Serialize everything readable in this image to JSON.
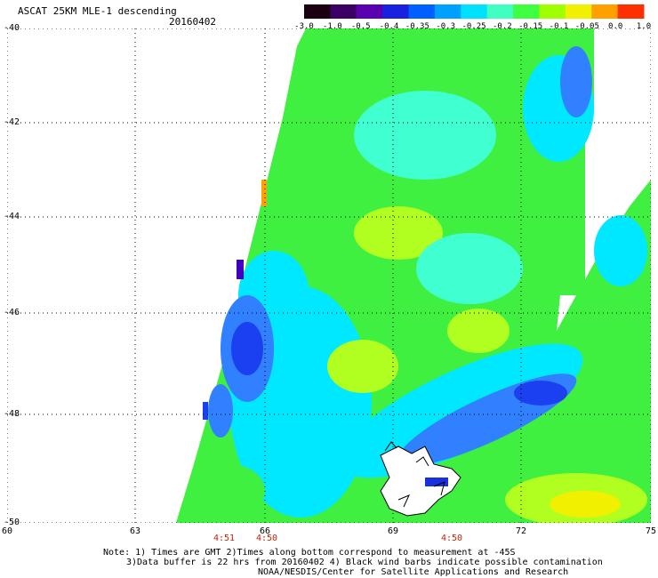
{
  "title": "ASCAT 25KM MLE-1 descending",
  "date": "20160402",
  "colorbar": {
    "ticks": [
      "-3.0",
      "-1.0",
      "-0.5",
      "-0.4",
      "-0.35",
      "-0.3",
      "-0.25",
      "-0.2",
      "-0.15",
      "-0.1",
      "-0.05",
      "0.0",
      "1.0"
    ],
    "colors": [
      "#1a0010",
      "#3a0066",
      "#5a00b0",
      "#1a20e0",
      "#0060ff",
      "#00a0ff",
      "#00e0ff",
      "#40ffc0",
      "#40ff40",
      "#a0ff00",
      "#f0f000",
      "#ffa000",
      "#ff3000"
    ]
  },
  "lat_labels": [
    "-40",
    "-42",
    "-44",
    "-46",
    "-48",
    "-50"
  ],
  "lon_labels": [
    "60",
    "63",
    "66",
    "69",
    "72",
    "75"
  ],
  "time_labels": [
    "4:51",
    "4:50",
    "4:50"
  ],
  "notes": {
    "line1": "Note: 1) Times are GMT 2)Times along bottom correspond to measurement at -45S",
    "line2": "3)Data buffer is 22 hrs from 20160402 4) Black wind barbs indicate possible contamination",
    "line3": "NOAA/NESDIS/Center for Satellite Applications and Research"
  },
  "map": {
    "lat_range": [
      -40,
      -50
    ],
    "lon_range": [
      60,
      75
    ],
    "field_colors": {
      "blue": "#1a40f0",
      "mid_blue": "#3080ff",
      "cyan": "#00e8ff",
      "aqua": "#40ffd0",
      "green": "#40f040",
      "yellow_green": "#b0ff20",
      "yellow": "#f0f000",
      "orange": "#ffa000",
      "purple": "#4000c0"
    }
  }
}
